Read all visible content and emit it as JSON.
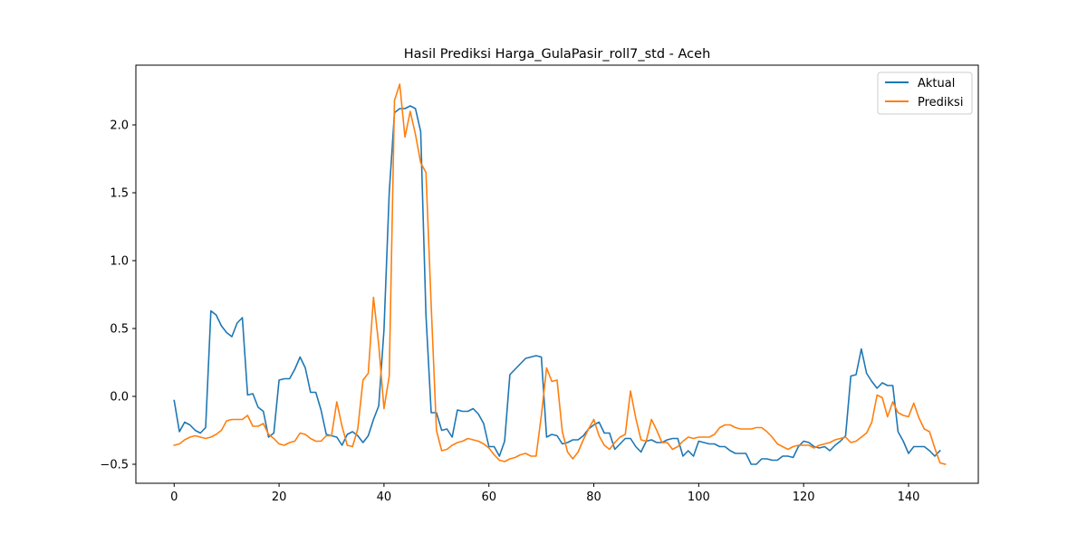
{
  "chart_data": {
    "type": "line",
    "title": "Hasil Prediksi Harga_GulaPasir_roll7_std - Aceh",
    "xlabel": "",
    "ylabel": "",
    "xlim": [
      -7.3,
      153.3
    ],
    "ylim": [
      -0.64,
      2.44
    ],
    "xticks": [
      0,
      20,
      40,
      60,
      80,
      100,
      120,
      140
    ],
    "yticks": [
      -0.5,
      0.0,
      0.5,
      1.0,
      1.5,
      2.0
    ],
    "xtick_labels": [
      "0",
      "20",
      "40",
      "60",
      "80",
      "100",
      "120",
      "140"
    ],
    "ytick_labels": [
      "−0.5",
      "0.0",
      "0.5",
      "1.0",
      "1.5",
      "2.0"
    ],
    "grid": false,
    "legend_position": "upper right",
    "series": [
      {
        "name": "Aktual",
        "color": "#1f77b4",
        "values": [
          -0.03,
          -0.26,
          -0.19,
          -0.21,
          -0.25,
          -0.27,
          -0.23,
          0.63,
          0.6,
          0.52,
          0.47,
          0.44,
          0.54,
          0.58,
          0.01,
          0.02,
          -0.08,
          -0.11,
          -0.3,
          -0.27,
          0.12,
          0.13,
          0.13,
          0.2,
          0.29,
          0.21,
          0.03,
          0.03,
          -0.1,
          -0.28,
          -0.29,
          -0.3,
          -0.36,
          -0.28,
          -0.26,
          -0.29,
          -0.34,
          -0.29,
          -0.17,
          -0.07,
          0.49,
          1.5,
          2.09,
          2.12,
          2.12,
          2.14,
          2.12,
          1.95,
          0.6,
          -0.12,
          -0.12,
          -0.25,
          -0.24,
          -0.3,
          -0.1,
          -0.11,
          -0.11,
          -0.09,
          -0.13,
          -0.2,
          -0.37,
          -0.37,
          -0.44,
          -0.33,
          0.16,
          0.2,
          0.24,
          0.28,
          0.29,
          0.3,
          0.29,
          -0.3,
          -0.28,
          -0.29,
          -0.35,
          -0.34,
          -0.32,
          -0.32,
          -0.29,
          -0.24,
          -0.21,
          -0.19,
          -0.27,
          -0.27,
          -0.39,
          -0.35,
          -0.31,
          -0.31,
          -0.37,
          -0.41,
          -0.33,
          -0.32,
          -0.34,
          -0.34,
          -0.32,
          -0.31,
          -0.31,
          -0.44,
          -0.4,
          -0.44,
          -0.33,
          -0.34,
          -0.35,
          -0.35,
          -0.37,
          -0.37,
          -0.4,
          -0.42,
          -0.42,
          -0.42,
          -0.5,
          -0.5,
          -0.46,
          -0.46,
          -0.47,
          -0.47,
          -0.44,
          -0.44,
          -0.45,
          -0.37,
          -0.33,
          -0.34,
          -0.37,
          -0.38,
          -0.37,
          -0.4,
          -0.36,
          -0.33,
          -0.29,
          0.15,
          0.16,
          0.35,
          0.17,
          0.11,
          0.06,
          0.1,
          0.08,
          0.08,
          -0.26,
          -0.33,
          -0.42,
          -0.37,
          -0.37,
          -0.37,
          -0.4,
          -0.44,
          -0.4
        ]
      },
      {
        "name": "Prediksi",
        "color": "#ff7f0e",
        "values": [
          -0.36,
          -0.35,
          -0.32,
          -0.3,
          -0.29,
          -0.3,
          -0.31,
          -0.3,
          -0.28,
          -0.25,
          -0.18,
          -0.17,
          -0.17,
          -0.17,
          -0.14,
          -0.22,
          -0.22,
          -0.2,
          -0.28,
          -0.31,
          -0.35,
          -0.36,
          -0.34,
          -0.33,
          -0.27,
          -0.28,
          -0.31,
          -0.33,
          -0.33,
          -0.29,
          -0.29,
          -0.04,
          -0.22,
          -0.36,
          -0.37,
          -0.24,
          0.12,
          0.17,
          0.73,
          0.38,
          -0.09,
          0.15,
          2.18,
          2.3,
          1.91,
          2.1,
          1.93,
          1.72,
          1.65,
          0.67,
          -0.25,
          -0.4,
          -0.39,
          -0.36,
          -0.34,
          -0.33,
          -0.31,
          -0.32,
          -0.33,
          -0.35,
          -0.38,
          -0.43,
          -0.47,
          -0.48,
          -0.46,
          -0.45,
          -0.43,
          -0.42,
          -0.44,
          -0.44,
          -0.14,
          0.21,
          0.11,
          0.12,
          -0.26,
          -0.41,
          -0.46,
          -0.41,
          -0.32,
          -0.24,
          -0.17,
          -0.29,
          -0.36,
          -0.39,
          -0.34,
          -0.3,
          -0.28,
          0.04,
          -0.16,
          -0.32,
          -0.33,
          -0.17,
          -0.25,
          -0.34,
          -0.34,
          -0.39,
          -0.37,
          -0.33,
          -0.3,
          -0.31,
          -0.3,
          -0.3,
          -0.3,
          -0.28,
          -0.23,
          -0.21,
          -0.21,
          -0.23,
          -0.24,
          -0.24,
          -0.24,
          -0.23,
          -0.23,
          -0.26,
          -0.3,
          -0.35,
          -0.37,
          -0.39,
          -0.37,
          -0.36,
          -0.36,
          -0.36,
          -0.38,
          -0.36,
          -0.35,
          -0.34,
          -0.32,
          -0.31,
          -0.3,
          -0.34,
          -0.33,
          -0.3,
          -0.27,
          -0.19,
          0.01,
          -0.01,
          -0.15,
          -0.04,
          -0.12,
          -0.14,
          -0.15,
          -0.05,
          -0.16,
          -0.24,
          -0.26,
          -0.38,
          -0.49,
          -0.5
        ]
      }
    ]
  }
}
